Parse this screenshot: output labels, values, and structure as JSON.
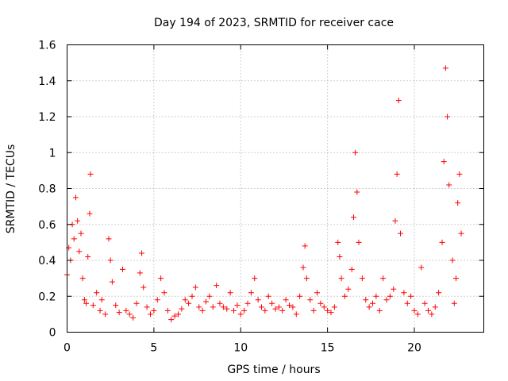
{
  "chart_data": {
    "type": "scatter",
    "title": "Day 194 of 2023, SRMTID for receiver cace",
    "xlabel": "GPS time / hours",
    "ylabel": "SRMTID / TECUs",
    "xlim": [
      0,
      24
    ],
    "ylim": [
      0,
      1.6
    ],
    "xticks": [
      0,
      5,
      10,
      15,
      20
    ],
    "xtick_labels": [
      "0",
      "5",
      "10",
      "15",
      "20"
    ],
    "yticks": [
      0,
      0.2,
      0.4,
      0.6,
      0.8,
      1.0,
      1.2,
      1.4,
      1.6
    ],
    "ytick_labels": [
      "0",
      "0.2",
      "0.4",
      "0.6",
      "0.8",
      "1",
      "1.2",
      "1.4",
      "1.6"
    ],
    "grid": true,
    "marker": "+",
    "marker_color": "#ff0000",
    "series": [
      {
        "name": "SRMTID",
        "x": [
          0.0,
          0.1,
          0.2,
          0.3,
          0.4,
          0.5,
          0.6,
          0.7,
          0.8,
          0.9,
          1.0,
          1.1,
          1.2,
          1.3,
          1.35,
          1.5,
          1.7,
          1.9,
          2.0,
          2.2,
          2.4,
          2.5,
          2.6,
          2.8,
          3.0,
          3.2,
          3.4,
          3.6,
          3.8,
          4.0,
          4.2,
          4.3,
          4.4,
          4.6,
          4.8,
          5.0,
          5.2,
          5.4,
          5.6,
          5.8,
          6.0,
          6.2,
          6.4,
          6.6,
          6.8,
          7.0,
          7.2,
          7.4,
          7.6,
          7.8,
          8.0,
          8.2,
          8.4,
          8.6,
          8.8,
          9.0,
          9.2,
          9.4,
          9.6,
          9.8,
          10.0,
          10.2,
          10.4,
          10.6,
          10.8,
          11.0,
          11.2,
          11.4,
          11.6,
          11.8,
          12.0,
          12.2,
          12.4,
          12.6,
          12.8,
          13.0,
          13.2,
          13.4,
          13.6,
          13.7,
          13.8,
          14.0,
          14.2,
          14.4,
          14.6,
          14.8,
          15.0,
          15.2,
          15.4,
          15.6,
          15.7,
          15.8,
          16.0,
          16.2,
          16.4,
          16.5,
          16.6,
          16.7,
          16.8,
          17.0,
          17.2,
          17.4,
          17.6,
          17.8,
          18.0,
          18.2,
          18.4,
          18.6,
          18.8,
          18.9,
          19.0,
          19.1,
          19.2,
          19.4,
          19.6,
          19.8,
          20.0,
          20.2,
          20.4,
          20.6,
          20.8,
          21.0,
          21.2,
          21.4,
          21.6,
          21.7,
          21.8,
          21.9,
          22.0,
          22.2,
          22.3,
          22.4,
          22.5,
          22.6,
          22.7
        ],
        "y": [
          0.32,
          0.47,
          0.4,
          0.6,
          0.52,
          0.75,
          0.62,
          0.45,
          0.55,
          0.3,
          0.18,
          0.16,
          0.42,
          0.66,
          0.88,
          0.15,
          0.22,
          0.12,
          0.18,
          0.1,
          0.52,
          0.4,
          0.28,
          0.15,
          0.11,
          0.35,
          0.12,
          0.1,
          0.08,
          0.16,
          0.33,
          0.44,
          0.25,
          0.14,
          0.1,
          0.12,
          0.18,
          0.3,
          0.22,
          0.12,
          0.07,
          0.09,
          0.1,
          0.13,
          0.18,
          0.16,
          0.2,
          0.25,
          0.14,
          0.12,
          0.17,
          0.2,
          0.14,
          0.26,
          0.16,
          0.14,
          0.13,
          0.22,
          0.12,
          0.15,
          0.1,
          0.12,
          0.16,
          0.22,
          0.3,
          0.18,
          0.14,
          0.12,
          0.2,
          0.16,
          0.13,
          0.14,
          0.12,
          0.18,
          0.15,
          0.14,
          0.1,
          0.2,
          0.36,
          0.48,
          0.3,
          0.18,
          0.12,
          0.22,
          0.16,
          0.14,
          0.12,
          0.11,
          0.14,
          0.5,
          0.42,
          0.3,
          0.2,
          0.24,
          0.35,
          0.64,
          1.0,
          0.78,
          0.5,
          0.3,
          0.18,
          0.14,
          0.16,
          0.2,
          0.12,
          0.3,
          0.18,
          0.2,
          0.24,
          0.62,
          0.88,
          1.29,
          0.55,
          0.22,
          0.16,
          0.2,
          0.12,
          0.1,
          0.36,
          0.16,
          0.12,
          0.1,
          0.14,
          0.22,
          0.5,
          0.95,
          1.47,
          1.2,
          0.82,
          0.4,
          0.16,
          0.3,
          0.72,
          0.88,
          0.55
        ]
      }
    ]
  }
}
